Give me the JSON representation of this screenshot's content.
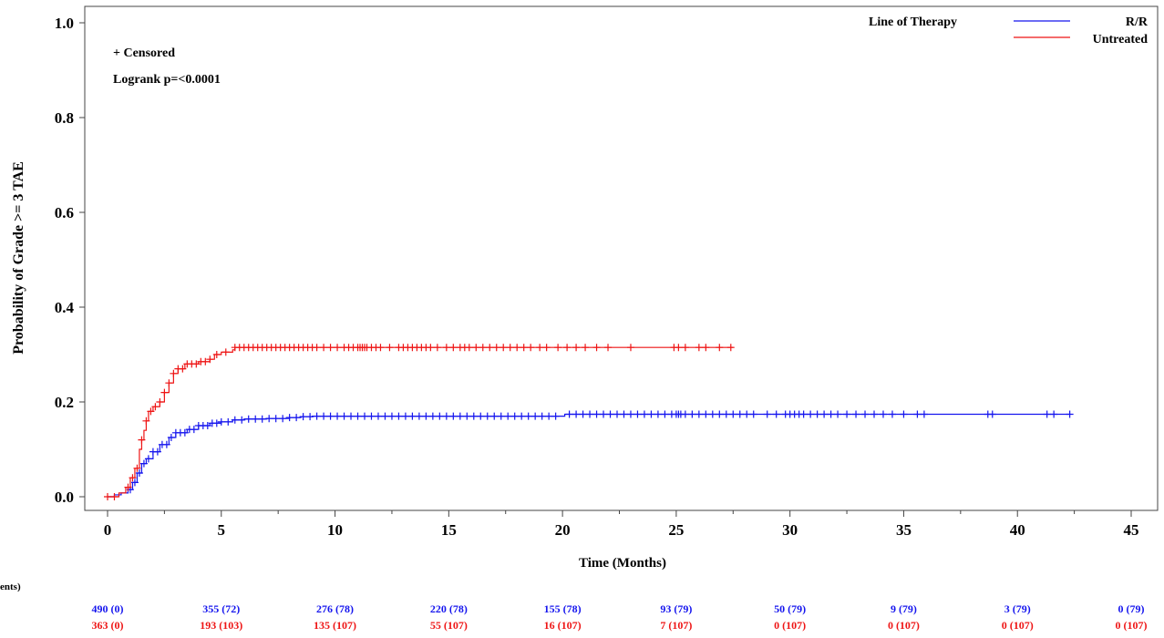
{
  "chart_data": {
    "type": "line",
    "subtype": "kaplan-meier",
    "ylabel": "Probability of Grade >= 3 TAE",
    "xlabel": "Time (Months)",
    "x_ticks": [
      "0",
      "5",
      "10",
      "15",
      "20",
      "25",
      "30",
      "35",
      "40",
      "45"
    ],
    "y_ticks": [
      "0.0",
      "0.2",
      "0.4",
      "0.6",
      "0.8",
      "1.0"
    ],
    "xlim": [
      -0.6,
      45.6
    ],
    "ylim": [
      0,
      1.0
    ],
    "grid": false,
    "annotations": [
      "+ Censored",
      "Logrank p=<0.0001"
    ],
    "legend": {
      "title": "Line of Therapy",
      "placement": "top-right",
      "entries": [
        {
          "name": "R/R",
          "color": "#1515ee"
        },
        {
          "name": "Untreated",
          "color": "#ee1515"
        }
      ]
    },
    "series": [
      {
        "name": "R/R",
        "color": "#1515ee",
        "points": [
          [
            0,
            0
          ],
          [
            0.3,
            0.004
          ],
          [
            0.6,
            0.008
          ],
          [
            0.9,
            0.015
          ],
          [
            1.1,
            0.03
          ],
          [
            1.3,
            0.05
          ],
          [
            1.5,
            0.07
          ],
          [
            1.7,
            0.08
          ],
          [
            2.0,
            0.095
          ],
          [
            2.3,
            0.11
          ],
          [
            2.7,
            0.125
          ],
          [
            3.0,
            0.135
          ],
          [
            3.5,
            0.142
          ],
          [
            4.0,
            0.15
          ],
          [
            4.5,
            0.155
          ],
          [
            5.0,
            0.158
          ],
          [
            5.5,
            0.162
          ],
          [
            6.0,
            0.164
          ],
          [
            7.0,
            0.165
          ],
          [
            8.0,
            0.167
          ],
          [
            8.5,
            0.169
          ],
          [
            9.0,
            0.17
          ],
          [
            20.0,
            0.17
          ],
          [
            20.1,
            0.174
          ],
          [
            42.3,
            0.174
          ]
        ],
        "censor_x": [
          1.0,
          1.2,
          1.4,
          1.6,
          1.8,
          2.0,
          2.2,
          2.4,
          2.6,
          2.8,
          3.0,
          3.2,
          3.4,
          3.6,
          3.8,
          4.0,
          4.2,
          4.4,
          4.6,
          4.8,
          5.0,
          5.3,
          5.6,
          5.9,
          6.2,
          6.5,
          6.8,
          7.1,
          7.4,
          7.7,
          8.0,
          8.3,
          8.6,
          8.9,
          9.2,
          9.5,
          9.8,
          10.1,
          10.4,
          10.7,
          11.0,
          11.3,
          11.6,
          11.9,
          12.2,
          12.5,
          12.8,
          13.1,
          13.4,
          13.7,
          14.0,
          14.3,
          14.6,
          14.9,
          15.2,
          15.5,
          15.8,
          16.1,
          16.4,
          16.7,
          17.0,
          17.3,
          17.6,
          17.9,
          18.2,
          18.5,
          18.8,
          19.1,
          19.4,
          19.7,
          20.3,
          20.6,
          20.9,
          21.2,
          21.5,
          21.8,
          22.1,
          22.4,
          22.7,
          23.0,
          23.3,
          23.6,
          23.9,
          24.2,
          24.5,
          24.8,
          25.0,
          25.1,
          25.2,
          25.4,
          25.7,
          26.0,
          26.3,
          26.6,
          26.9,
          27.2,
          27.5,
          27.8,
          28.1,
          28.4,
          29.0,
          29.4,
          29.8,
          30.0,
          30.2,
          30.4,
          30.6,
          30.9,
          31.2,
          31.5,
          31.8,
          32.1,
          32.5,
          32.9,
          33.3,
          33.7,
          34.1,
          34.5,
          35.0,
          35.6,
          35.9,
          38.7,
          38.9,
          41.3,
          41.6,
          42.3
        ]
      },
      {
        "name": "Untreated",
        "color": "#ee1515",
        "points": [
          [
            0,
            0
          ],
          [
            0.5,
            0.008
          ],
          [
            0.8,
            0.02
          ],
          [
            1.0,
            0.04
          ],
          [
            1.2,
            0.06
          ],
          [
            1.4,
            0.1
          ],
          [
            1.5,
            0.12
          ],
          [
            1.6,
            0.14
          ],
          [
            1.7,
            0.16
          ],
          [
            1.8,
            0.18
          ],
          [
            2.0,
            0.19
          ],
          [
            2.3,
            0.2
          ],
          [
            2.5,
            0.22
          ],
          [
            2.7,
            0.24
          ],
          [
            2.9,
            0.26
          ],
          [
            3.1,
            0.27
          ],
          [
            3.4,
            0.28
          ],
          [
            4.0,
            0.285
          ],
          [
            4.5,
            0.29
          ],
          [
            4.7,
            0.3
          ],
          [
            5.0,
            0.305
          ],
          [
            5.5,
            0.31
          ],
          [
            5.6,
            0.315
          ],
          [
            27.5,
            0.315
          ]
        ],
        "censor_x": [
          0.0,
          0.3,
          0.9,
          1.1,
          1.3,
          1.5,
          1.7,
          1.9,
          2.1,
          2.3,
          2.5,
          2.7,
          2.9,
          3.1,
          3.3,
          3.5,
          3.7,
          3.9,
          4.1,
          4.3,
          4.5,
          4.8,
          5.2,
          5.6,
          5.8,
          6.0,
          6.2,
          6.4,
          6.6,
          6.8,
          7.0,
          7.2,
          7.4,
          7.6,
          7.8,
          8.0,
          8.2,
          8.4,
          8.6,
          8.8,
          9.0,
          9.2,
          9.5,
          9.8,
          10.1,
          10.4,
          10.6,
          10.8,
          11.0,
          11.1,
          11.2,
          11.3,
          11.4,
          11.6,
          11.8,
          12.0,
          12.4,
          12.8,
          13.0,
          13.2,
          13.4,
          13.6,
          13.8,
          14.0,
          14.2,
          14.5,
          14.9,
          15.2,
          15.5,
          15.7,
          15.9,
          16.2,
          16.5,
          16.8,
          17.1,
          17.4,
          17.7,
          18.0,
          18.3,
          18.6,
          19.0,
          19.3,
          19.8,
          20.2,
          20.6,
          21.0,
          21.5,
          22.0,
          23.0,
          24.9,
          25.1,
          25.4,
          26.0,
          26.3,
          26.9,
          27.4
        ]
      }
    ],
    "risk_table": {
      "label": "ents)",
      "rows": [
        {
          "series": "R/R",
          "color": "#1515ee",
          "values": [
            "490 (0)",
            "355 (72)",
            "276 (78)",
            "220 (78)",
            "155 (78)",
            "93 (79)",
            "50 (79)",
            "9 (79)",
            "3 (79)",
            "0 (79)"
          ]
        },
        {
          "series": "Untreated",
          "color": "#ee1515",
          "values": [
            "363 (0)",
            "193 (103)",
            "135 (107)",
            "55 (107)",
            "16 (107)",
            "7 (107)",
            "0 (107)",
            "0 (107)",
            "0 (107)",
            "0 (107)"
          ]
        }
      ]
    }
  }
}
